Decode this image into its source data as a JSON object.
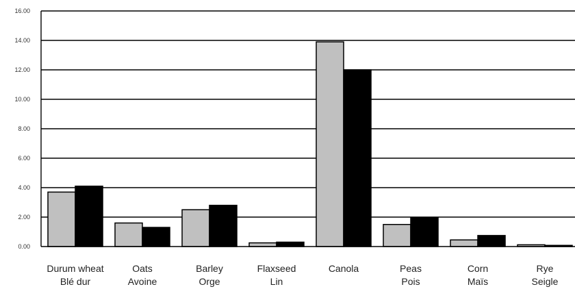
{
  "chart_data": {
    "type": "bar",
    "categories": [
      [
        "Durum wheat",
        "Blé dur"
      ],
      [
        "Oats",
        "Avoine"
      ],
      [
        "Barley",
        "Orge"
      ],
      [
        "Flaxseed",
        "Lin"
      ],
      [
        "Canola",
        ""
      ],
      [
        "Peas",
        "Pois"
      ],
      [
        "Corn",
        "Maïs"
      ],
      [
        "Rye",
        "Seigle"
      ]
    ],
    "series": [
      {
        "color": "#c0c0c0",
        "values": [
          3.7,
          1.6,
          2.5,
          0.25,
          13.9,
          1.5,
          0.45,
          0.12
        ]
      },
      {
        "color": "#000000",
        "values": [
          4.1,
          1.3,
          2.8,
          0.3,
          12.0,
          1.95,
          0.75,
          0.08
        ]
      }
    ],
    "yticks": [
      "0.00",
      "2.00",
      "4.00",
      "6.00",
      "8.00",
      "10.00",
      "12.00",
      "14.00",
      "16.00"
    ],
    "ylim": [
      0,
      16
    ],
    "grid": true,
    "title": "",
    "xlabel": "",
    "ylabel": ""
  }
}
